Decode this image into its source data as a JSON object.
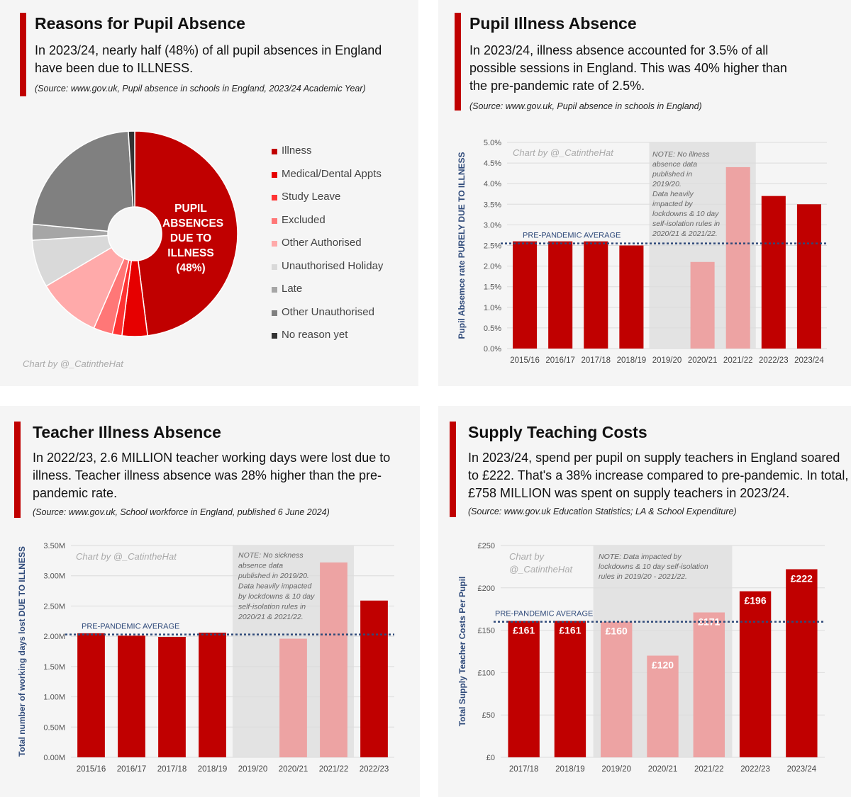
{
  "colors": {
    "illness": "#c00000",
    "medical": "#e60000",
    "study": "#ff3333",
    "excluded": "#ff7777",
    "other_auth": "#ffaaaa",
    "unauth_holiday": "#d9d9d9",
    "late": "#a6a6a6",
    "other_unauth": "#808080",
    "no_reason": "#333333",
    "bar_main": "#c00000",
    "bar_faded": "#eda3a3",
    "avg_line": "#2f4a7a"
  },
  "panels": {
    "pupil_absence": {
      "title": "Reasons for Pupil Absence",
      "subtitle": "In 2023/24, nearly half (48%) of all pupil absences in England have been due to ILLNESS.",
      "source": "(Source: www.gov.uk, Pupil absence in schools in England, 2023/24 Academic Year)",
      "credit": "Chart by @_CatintheHat",
      "pie_label": [
        "PUPIL",
        "ABSENCES",
        "DUE TO",
        "ILLNESS",
        "(48%)"
      ]
    },
    "illness_rate": {
      "title": "Pupil Illness Absence",
      "subtitle": "In 2023/24, illness absence accounted for 3.5% of all possible sessions in England. This was 40% higher than the pre-pandemic rate of 2.5%.",
      "source": "(Source: www.gov.uk, Pupil absence in schools in England)",
      "credit": "Chart by @_CatintheHat",
      "note_lines": [
        "NOTE: No illness",
        "absence data",
        "published in",
        "2019/20.",
        "Data heavily",
        "impacted by",
        "lockdowns & 10 day",
        "self-isolation rules in",
        "2020/21 & 2021/22."
      ],
      "avg_label": "PRE-PANDEMIC AVERAGE"
    },
    "teacher_illness": {
      "title": "Teacher Illness Absence",
      "subtitle": "In 2022/23, 2.6 MILLION teacher working days were lost due to illness. Teacher illness absence was 28% higher than the pre-pandemic rate.",
      "source": "(Source: www.gov.uk, School workforce in England, published 6 June 2024)",
      "credit": "Chart by @_CatintheHat",
      "note_lines": [
        "NOTE: No sickness",
        "absence data",
        "published in 2019/20.",
        "Data heavily impacted",
        "by lockdowns & 10 day",
        "self-isolation rules in",
        "2020/21 & 2021/22."
      ],
      "avg_label": "PRE-PANDEMIC AVERAGE"
    },
    "supply_costs": {
      "title": "Supply Teaching Costs",
      "subtitle": "In 2023/24, spend per pupil on supply teachers in England soared to £222. That's a 38% increase compared to pre-pandemic. In total, £758 MILLION was spent on supply teachers in 2023/24.",
      "source": "(Source: www.gov.uk Education Statistics; LA & School Expenditure)",
      "credit_lines": [
        "Chart by",
        "@_CatintheHat"
      ],
      "note_lines": [
        "NOTE: Data impacted by",
        "lockdowns & 10 day self-isolation",
        "rules in 2019/20 - 2021/22."
      ],
      "avg_label": "PRE-PANDEMIC AVERAGE"
    }
  },
  "chart_data": [
    {
      "type": "pie",
      "title": "Reasons for Pupil Absence",
      "labels": [
        "Illness",
        "Medical/Dental Appts",
        "Study Leave",
        "Excluded",
        "Other Authorised",
        "Unauthorised Holiday",
        "Late",
        "Other Unauthorised",
        "No reason yet"
      ],
      "values": [
        48,
        4,
        1.5,
        3,
        10,
        7.5,
        2.5,
        22.5,
        1
      ]
    },
    {
      "type": "bar",
      "title": "Pupil Illness Absence",
      "ylabel": "Pupil Absemce rate PURELY DUE TO ILLNESS",
      "categories": [
        "2015/16",
        "2016/17",
        "2017/18",
        "2018/19",
        "2019/20",
        "2020/21",
        "2021/22",
        "2022/23",
        "2023/24"
      ],
      "values": [
        2.6,
        2.6,
        2.6,
        2.5,
        null,
        2.1,
        4.4,
        3.7,
        3.5
      ],
      "faded": [
        false,
        false,
        false,
        false,
        true,
        true,
        true,
        false,
        false
      ],
      "ylim": [
        0,
        5
      ],
      "yticks": [
        "0.0%",
        "0.5%",
        "1.0%",
        "1.5%",
        "2.0%",
        "2.5%",
        "3.0%",
        "3.5%",
        "4.0%",
        "4.5%",
        "5.0%"
      ],
      "pre_pandemic_average": 2.55
    },
    {
      "type": "bar",
      "title": "Teacher Illness Absence",
      "ylabel": "Total number of working days lost DUE TO ILLNESS",
      "categories": [
        "2015/16",
        "2016/17",
        "2017/18",
        "2018/19",
        "2019/20",
        "2020/21",
        "2021/22",
        "2022/23"
      ],
      "values": [
        2.05,
        2.01,
        1.99,
        2.06,
        null,
        1.96,
        3.22,
        2.59
      ],
      "faded": [
        false,
        false,
        false,
        false,
        true,
        true,
        true,
        false
      ],
      "ylim": [
        0,
        3.5
      ],
      "yticks": [
        "0.00M",
        "0.50M",
        "1.00M",
        "1.50M",
        "2.00M",
        "2.50M",
        "3.00M",
        "3.50M"
      ],
      "pre_pandemic_average": 2.03
    },
    {
      "type": "bar",
      "title": "Supply Teaching Costs",
      "ylabel": "Total Supply Teacher Costs Per Pupil",
      "categories": [
        "2017/18",
        "2018/19",
        "2019/20",
        "2020/21",
        "2021/22",
        "2022/23",
        "2023/24"
      ],
      "values": [
        161,
        161,
        160,
        120,
        171,
        196,
        222
      ],
      "data_labels": [
        "£161",
        "£161",
        "£160",
        "£120",
        "£171",
        "£196",
        "£222"
      ],
      "faded": [
        false,
        false,
        true,
        true,
        true,
        false,
        false
      ],
      "ylim": [
        0,
        250
      ],
      "yticks": [
        "£0",
        "£50",
        "£100",
        "£150",
        "£200",
        "£250"
      ],
      "pre_pandemic_average": 160
    }
  ]
}
